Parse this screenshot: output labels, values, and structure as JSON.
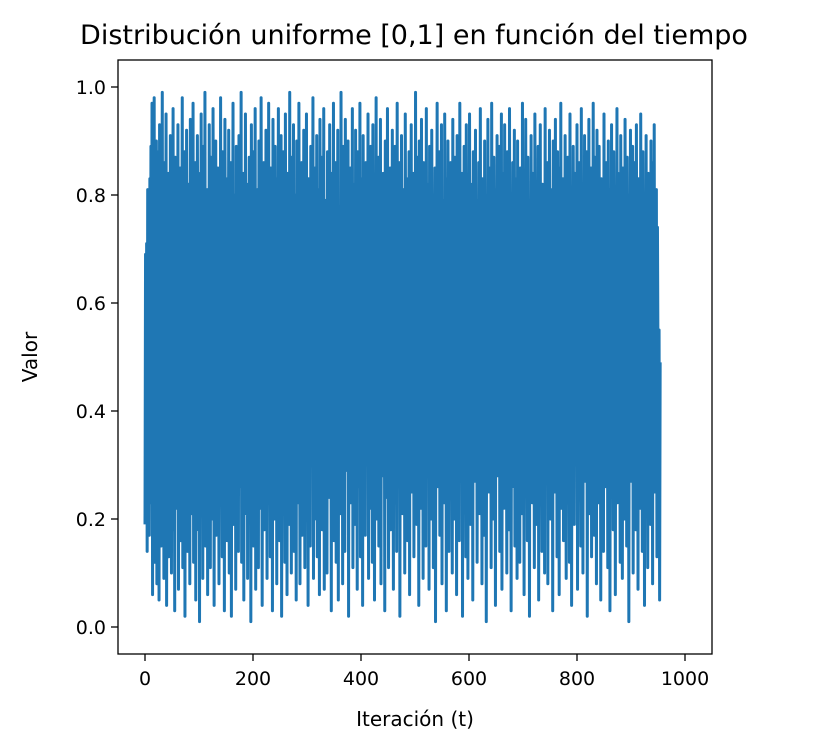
{
  "chart_data": {
    "type": "line",
    "title": "Distribución uniforme [0,1] en función del tiempo",
    "xlabel": "Iteración (t)",
    "ylabel": "Valor",
    "xlim": [
      -50,
      1050
    ],
    "ylim": [
      -0.05,
      1.05
    ],
    "x_ticks": [
      0,
      200,
      400,
      600,
      800,
      1000
    ],
    "x_tick_labels": [
      "0",
      "200",
      "400",
      "600",
      "800",
      "1000"
    ],
    "y_ticks": [
      0.0,
      0.2,
      0.4,
      0.6,
      0.8,
      1.0
    ],
    "y_tick_labels": [
      "0.0",
      "0.2",
      "0.4",
      "0.6",
      "0.8",
      "1.0"
    ],
    "grid": false,
    "legend": "none",
    "series": [
      {
        "color": "#1f77b4",
        "x_start": 0,
        "x_step": 1,
        "values": [
          0.19,
          0.69,
          0.21,
          0.71,
          0.14,
          0.81,
          0.27,
          0.62,
          0.17,
          0.83,
          0.42,
          0.89,
          0.23,
          0.97,
          0.06,
          0.74,
          0.33,
          0.98,
          0.12,
          0.58,
          0.36,
          0.9,
          0.08,
          0.88,
          0.25,
          0.66,
          0.05,
          0.93,
          0.44,
          0.79,
          0.15,
          0.52,
          0.99,
          0.31,
          0.72,
          0.09,
          0.86,
          0.47,
          0.2,
          0.95,
          0.04,
          0.61,
          0.38,
          0.84,
          0.13,
          0.7,
          0.28,
          0.91,
          0.56,
          0.1,
          0.77,
          0.35,
          0.96,
          0.18,
          0.64,
          0.03,
          0.87,
          0.49,
          0.22,
          0.8,
          0.41,
          0.93,
          0.07,
          0.67,
          0.3,
          0.85,
          0.16,
          0.73,
          0.54,
          0.98,
          0.11,
          0.6,
          0.39,
          0.88,
          0.02,
          0.76,
          0.26,
          0.92,
          0.46,
          0.14,
          0.82,
          0.34,
          0.65,
          0.08,
          0.94,
          0.5,
          0.21,
          0.78,
          0.37,
          0.97,
          0.12,
          0.69,
          0.43,
          0.86,
          0.05,
          0.57,
          0.29,
          0.91,
          0.63,
          0.18,
          0.75,
          0.01,
          0.84,
          0.4,
          0.95,
          0.24,
          0.68,
          0.09,
          0.89,
          0.53,
          0.32,
          0.99,
          0.15,
          0.71,
          0.45,
          0.81,
          0.06,
          0.62,
          0.27,
          0.93,
          0.48,
          0.11,
          0.87,
          0.36,
          0.74,
          0.2,
          0.96,
          0.58,
          0.04,
          0.79,
          0.42,
          0.9,
          0.17,
          0.66,
          0.31,
          0.85,
          0.51,
          0.08,
          0.72,
          0.39,
          0.98,
          0.23,
          0.6,
          0.13,
          0.88,
          0.44,
          0.77,
          0.03,
          0.94,
          0.55,
          0.28,
          0.83,
          0.16,
          0.69,
          0.47,
          0.92,
          0.1,
          0.64,
          0.35,
          0.86,
          0.02,
          0.73,
          0.5,
          0.97,
          0.19,
          0.61,
          0.41,
          0.8,
          0.07,
          0.89,
          0.33,
          0.75,
          0.54,
          0.14,
          0.91,
          0.26,
          0.67,
          0.46,
          0.99,
          0.12,
          0.58,
          0.38,
          0.84,
          0.05,
          0.71,
          0.3,
          0.95,
          0.49,
          0.21,
          0.82,
          0.09,
          0.63,
          0.43,
          0.87,
          0.24,
          0.76,
          0.01,
          0.93,
          0.52,
          0.34,
          0.88,
          0.15,
          0.68,
          0.4,
          0.96,
          0.07,
          0.6,
          0.29,
          0.81,
          0.45,
          0.11,
          0.9,
          0.37,
          0.74,
          0.22,
          0.98,
          0.56,
          0.04,
          0.78,
          0.48,
          0.86,
          0.18,
          0.65,
          0.32,
          0.92,
          0.53,
          0.09,
          0.7,
          0.42,
          0.97,
          0.25,
          0.62,
          0.13,
          0.85,
          0.47,
          0.79,
          0.03,
          0.94,
          0.36,
          0.57,
          0.2,
          0.89,
          0.44,
          0.73,
          0.08,
          0.83,
          0.31,
          0.96,
          0.51,
          0.16,
          0.66,
          0.39,
          0.91,
          0.02,
          0.77,
          0.55,
          0.88,
          0.27,
          0.61,
          0.12,
          0.95,
          0.46,
          0.72,
          0.06,
          0.84,
          0.34,
          0.59,
          0.19,
          0.99,
          0.43,
          0.75,
          0.1,
          0.87,
          0.5,
          0.28,
          0.93,
          0.14,
          0.68,
          0.41,
          0.8,
          0.05,
          0.9,
          0.37,
          0.64,
          0.23,
          0.97,
          0.54,
          0.08,
          0.76,
          0.45,
          0.86,
          0.17,
          0.63,
          0.3,
          0.92,
          0.49,
          0.11,
          0.71,
          0.38,
          0.95,
          0.26,
          0.58,
          0.04,
          0.83,
          0.52,
          0.78,
          0.15,
          0.89,
          0.35,
          0.67,
          0.42,
          0.98,
          0.09,
          0.74,
          0.29,
          0.85,
          0.47,
          0.2,
          0.91,
          0.13,
          0.62,
          0.4,
          0.81,
          0.06,
          0.94,
          0.56,
          0.33,
          0.87,
          0.18,
          0.69,
          0.44,
          0.96,
          0.07,
          0.6,
          0.31,
          0.79,
          0.51,
          0.1,
          0.88,
          0.37,
          0.72,
          0.24,
          0.93,
          0.46,
          0.65,
          0.03,
          0.84,
          0.53,
          0.27,
          0.97,
          0.16,
          0.7,
          0.39,
          0.86,
          0.12,
          0.57,
          0.43,
          0.92,
          0.05,
          0.76,
          0.32,
          0.63,
          0.21,
          0.99,
          0.48,
          0.81,
          0.08,
          0.89,
          0.36,
          0.68,
          0.14,
          0.94,
          0.55,
          0.29,
          0.77,
          0.41,
          0.9,
          0.02,
          0.73,
          0.5,
          0.85,
          0.23,
          0.61,
          0.34,
          0.96,
          0.11,
          0.66,
          0.45,
          0.82,
          0.19,
          0.92,
          0.38,
          0.59,
          0.07,
          0.88,
          0.52,
          0.74,
          0.26,
          0.97,
          0.13,
          0.64,
          0.42,
          0.83,
          0.04,
          0.91,
          0.35,
          0.7,
          0.49,
          0.17,
          0.86,
          0.3,
          0.62,
          0.45,
          0.95,
          0.09,
          0.78,
          0.54,
          0.22,
          0.89,
          0.37,
          0.67,
          0.12,
          0.93,
          0.48,
          0.8,
          0.05,
          0.72,
          0.33,
          0.98,
          0.2,
          0.6,
          0.43,
          0.87,
          0.15,
          0.69,
          0.39,
          0.94,
          0.08,
          0.75,
          0.51,
          0.28,
          0.84,
          0.46,
          0.63,
          0.03,
          0.9,
          0.35,
          0.79,
          0.24,
          0.96,
          0.56,
          0.11,
          0.71,
          0.41,
          0.85,
          0.18,
          0.66,
          0.32,
          0.92,
          0.5,
          0.07,
          0.77,
          0.44,
          0.89,
          0.27,
          0.58,
          0.14,
          0.97,
          0.38,
          0.73,
          0.52,
          0.86,
          0.02,
          0.64,
          0.31,
          0.91,
          0.47,
          0.21,
          0.81,
          0.36,
          0.69,
          0.1,
          0.95,
          0.55,
          0.3,
          0.83,
          0.16,
          0.61,
          0.42,
          0.88,
          0.06,
          0.76,
          0.49,
          0.93,
          0.25,
          0.57,
          0.39,
          0.84,
          0.13,
          0.7,
          0.34,
          0.99,
          0.45,
          0.19,
          0.87,
          0.53,
          0.65,
          0.04,
          0.9,
          0.4,
          0.78,
          0.22,
          0.94,
          0.48,
          0.62,
          0.09,
          0.86,
          0.33,
          0.74,
          0.51,
          0.15,
          0.96,
          0.28,
          0.68,
          0.43,
          0.82,
          0.07,
          0.89,
          0.37,
          0.59,
          0.2,
          0.92,
          0.55,
          0.77,
          0.11,
          0.66,
          0.41,
          0.85,
          0.01,
          0.73,
          0.47,
          0.97,
          0.26,
          0.6,
          0.35,
          0.88,
          0.17,
          0.71,
          0.5,
          0.93,
          0.08,
          0.79,
          0.38,
          0.64,
          0.23,
          0.95,
          0.44,
          0.83,
          0.03,
          0.69,
          0.32,
          0.9,
          0.53,
          0.14,
          0.76,
          0.46,
          0.86,
          0.29,
          0.58,
          0.1,
          0.94,
          0.4,
          0.72,
          0.2,
          0.87,
          0.52,
          0.63,
          0.06,
          0.91,
          0.36,
          0.8,
          0.45,
          0.16,
          0.97,
          0.31,
          0.67,
          0.49,
          0.84,
          0.02,
          0.75,
          0.42,
          0.89,
          0.24,
          0.61,
          0.13,
          0.93,
          0.54,
          0.78,
          0.09,
          0.68,
          0.37,
          0.95,
          0.47,
          0.19,
          0.82,
          0.33,
          0.71,
          0.05,
          0.88,
          0.5,
          0.65,
          0.27,
          0.92,
          0.43,
          0.79,
          0.12,
          0.6,
          0.39,
          0.86,
          0.56,
          0.21,
          0.96,
          0.34,
          0.73,
          0.08,
          0.83,
          0.48,
          0.62,
          0.17,
          0.9,
          0.41,
          0.77,
          0.01,
          0.69,
          0.3,
          0.94,
          0.52,
          0.25,
          0.85,
          0.44,
          0.66,
          0.11,
          0.97,
          0.38,
          0.74,
          0.2,
          0.87,
          0.55,
          0.59,
          0.04,
          0.81,
          0.46,
          0.91,
          0.28,
          0.63,
          0.35,
          0.89,
          0.14,
          0.72,
          0.49,
          0.95,
          0.07,
          0.67,
          0.42,
          0.84,
          0.22,
          0.93,
          0.31,
          0.76,
          0.53,
          0.1,
          0.88,
          0.4,
          0.6,
          0.18,
          0.96,
          0.47,
          0.79,
          0.03,
          0.7,
          0.36,
          0.86,
          0.51,
          0.26,
          0.92,
          0.15,
          0.64,
          0.44,
          0.83,
          0.09,
          0.9,
          0.33,
          0.73,
          0.55,
          0.12,
          0.85,
          0.39,
          0.68,
          0.21,
          0.97,
          0.48,
          0.61,
          0.06,
          0.8,
          0.43,
          0.94,
          0.29,
          0.58,
          0.16,
          0.87,
          0.5,
          0.75,
          0.02,
          0.71,
          0.37,
          0.91,
          0.45,
          0.23,
          0.84,
          0.32,
          0.66,
          0.11,
          0.95,
          0.54,
          0.78,
          0.19,
          0.62,
          0.41,
          0.89,
          0.05,
          0.77,
          0.47,
          0.93,
          0.27,
          0.6,
          0.14,
          0.82,
          0.38,
          0.7,
          0.52,
          0.1,
          0.96,
          0.34,
          0.65,
          0.45,
          0.86,
          0.08,
          0.74,
          0.3,
          0.92,
          0.49,
          0.2,
          0.81,
          0.56,
          0.67,
          0.03,
          0.9,
          0.42,
          0.79,
          0.25,
          0.94,
          0.36,
          0.63,
          0.13,
          0.88,
          0.51,
          0.72,
          0.06,
          0.85,
          0.4,
          0.97,
          0.22,
          0.59,
          0.46,
          0.83,
          0.16,
          0.69,
          0.33,
          0.91,
          0.53,
          0.09,
          0.76,
          0.43,
          0.87,
          0.28,
          0.61,
          0.12,
          0.95,
          0.48,
          0.8,
          0.04,
          0.7,
          0.37,
          0.89,
          0.55,
          0.19,
          0.84,
          0.31,
          0.64,
          0.44,
          0.93,
          0.07,
          0.75,
          0.5,
          0.86,
          0.24,
          0.58,
          0.15,
          0.96,
          0.39,
          0.72,
          0.1,
          0.82,
          0.46,
          0.91,
          0.27,
          0.62,
          0.35,
          0.88,
          0.02,
          0.68,
          0.53,
          0.94,
          0.21,
          0.77,
          0.41,
          0.85,
          0.13,
          0.6,
          0.3,
          0.97,
          0.48,
          0.17,
          0.87,
          0.55,
          0.66,
          0.08,
          0.92,
          0.38,
          0.79,
          0.23,
          0.89,
          0.45,
          0.63,
          0.05,
          0.83,
          0.34,
          0.74,
          0.51,
          0.14,
          0.95,
          0.42,
          0.7,
          0.26,
          0.86,
          0.49,
          0.59,
          0.11,
          0.9,
          0.37,
          0.81,
          0.03,
          0.73,
          0.44,
          0.93,
          0.29,
          0.61,
          0.18,
          0.88,
          0.52,
          0.76,
          0.06,
          0.67,
          0.4,
          0.96,
          0.23,
          0.84,
          0.32,
          0.65,
          0.47,
          0.12,
          0.91,
          0.56,
          0.72,
          0.09,
          0.85,
          0.36,
          0.62,
          0.2,
          0.94,
          0.43,
          0.78,
          0.15,
          0.87,
          0.5,
          0.68,
          0.01,
          0.8,
          0.39,
          0.92,
          0.27,
          0.57,
          0.46,
          0.89,
          0.1,
          0.71,
          0.33,
          0.86,
          0.54,
          0.18,
          0.93,
          0.41,
          0.64,
          0.07,
          0.83,
          0.48,
          0.75,
          0.22,
          0.95,
          0.35,
          0.6,
          0.14,
          0.88,
          0.52,
          0.79,
          0.04,
          0.69,
          0.44,
          0.91,
          0.3,
          0.62,
          0.11,
          0.84,
          0.38,
          0.73,
          0.55,
          0.19,
          0.9,
          0.47,
          0.66,
          0.08,
          0.86,
          0.32,
          0.93,
          0.25,
          0.59,
          0.42,
          0.81,
          0.13,
          0.74,
          0.49,
          0.2,
          0.55,
          0.05,
          0.49
        ]
      }
    ]
  }
}
